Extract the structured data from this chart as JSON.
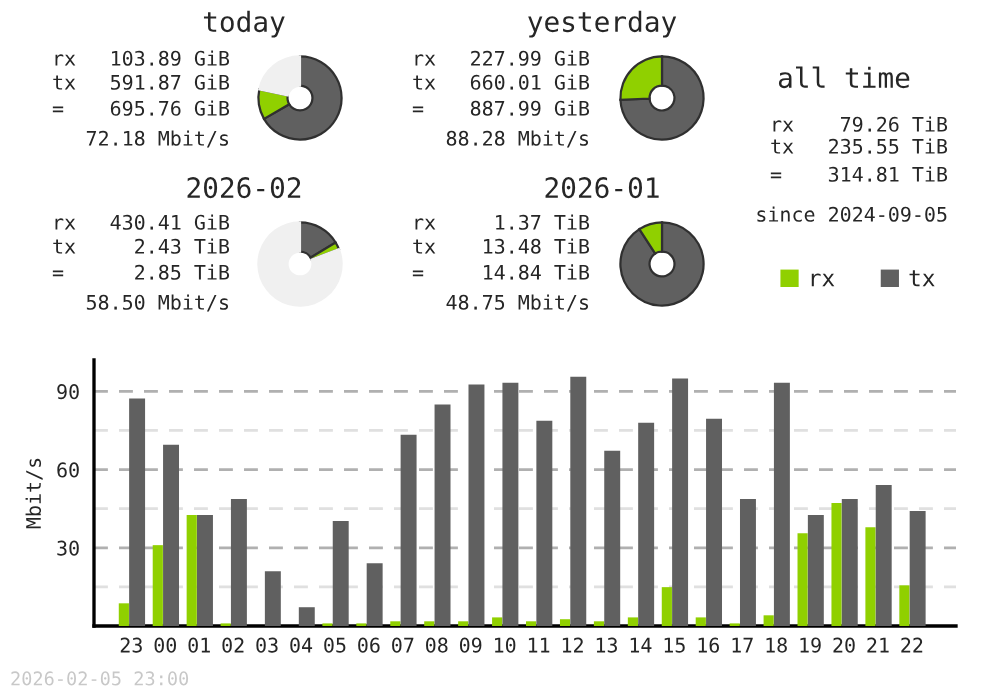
{
  "chart_data": [
    {
      "type": "donut",
      "title": "today",
      "categories": [
        null,
        null,
        null
      ],
      "values": [
        66.65,
        11.7,
        21.65
      ],
      "colors": [
        "#606060",
        "#90d000",
        "#f0f0f0"
      ],
      "annotations": [
        "rx",
        "103.89 GiB",
        "tx",
        "591.87 GiB",
        "=",
        "695.76 GiB",
        "72.18 Mbit/s"
      ]
    },
    {
      "type": "donut",
      "title": "yesterday",
      "categories": [
        null,
        null
      ],
      "values": [
        74.33,
        25.67
      ],
      "colors": [
        "#606060",
        "#90d000"
      ],
      "annotations": [
        "rx",
        "227.99 GiB",
        "tx",
        "660.01 GiB",
        "=",
        "887.99 GiB",
        "88.28 Mbit/s"
      ]
    },
    {
      "type": "other",
      "title": "all time",
      "annotations": [
        "rx",
        "79.26 TiB",
        "tx",
        "235.55 TiB",
        "=",
        "314.81 TiB",
        "since 2024-09-05"
      ]
    },
    {
      "type": "donut",
      "title": "2026-02",
      "categories": [
        null,
        null,
        null
      ],
      "values": [
        16.37,
        2.83,
        80.8
      ],
      "colors": [
        "#606060",
        "#90d000",
        "#f0f0f0"
      ],
      "annotations": [
        "rx",
        "430.41 GiB",
        "tx",
        "2.43 TiB",
        "=",
        "2.85 TiB",
        "58.50 Mbit/s"
      ]
    },
    {
      "type": "donut",
      "title": "2026-01",
      "categories": [
        null,
        null
      ],
      "values": [
        90.84,
        9.16
      ],
      "colors": [
        "#606060",
        "#90d000"
      ],
      "annotations": [
        "rx",
        "1.37 TiB",
        "tx",
        "13.48 TiB",
        "=",
        "14.84 TiB",
        "48.75 Mbit/s"
      ]
    },
    {
      "type": "bar",
      "ylabel": "Mbit/s",
      "categories": [
        "23",
        "00",
        "01",
        "02",
        "03",
        "04",
        "05",
        "06",
        "07",
        "08",
        "09",
        "10",
        "11",
        "12",
        "13",
        "14",
        "15",
        "16",
        "17",
        "18",
        "19",
        "20",
        "21",
        "22"
      ],
      "series": [
        {
          "name": "rx",
          "color": "#90d000",
          "values": [
            8.7,
            31.0,
            42.6,
            1.0,
            null,
            null,
            1.0,
            1.0,
            1.8,
            1.8,
            1.8,
            3.3,
            1.8,
            2.6,
            1.8,
            3.3,
            14.9,
            3.3,
            1.0,
            4.1,
            35.6,
            47.2,
            37.9,
            15.6
          ]
        },
        {
          "name": "tx",
          "color": "#606060",
          "values": [
            87.2,
            69.5,
            42.6,
            48.7,
            21.0,
            7.2,
            40.3,
            24.1,
            73.3,
            84.9,
            92.6,
            93.3,
            78.7,
            95.6,
            67.2,
            77.9,
            94.9,
            79.5,
            48.7,
            93.3,
            42.6,
            48.7,
            54.1,
            44.1
          ]
        }
      ],
      "ylim": [
        0,
        102
      ],
      "yticks": [
        {
          "value": 15,
          "label": null
        },
        30,
        {
          "value": 45,
          "label": null
        },
        60,
        {
          "value": 75,
          "label": null
        },
        90
      ],
      "grid": "y",
      "legend": "top right",
      "annotations": [
        "2026-02-05 23:00"
      ]
    }
  ]
}
